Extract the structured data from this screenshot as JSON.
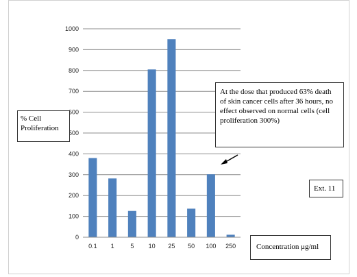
{
  "chart_data": {
    "type": "bar",
    "categories": [
      "0.1",
      "1",
      "5",
      "10",
      "25",
      "50",
      "100",
      "250"
    ],
    "values": [
      380,
      282,
      126,
      805,
      950,
      137,
      302,
      12
    ],
    "ylim": [
      0,
      1000
    ],
    "yticks": [
      "0",
      "100",
      "200",
      "300",
      "400",
      "500",
      "600",
      "700",
      "800",
      "900",
      "1000"
    ],
    "ylabel": "% Cell Proliferation",
    "xlabel": "Concentration μg/ml",
    "annotation": "At the dose that produced 63% death of skin cancer cells after 36 hours, no effect observed on normal cells (cell proliferation 300%)",
    "tag": "Ext. 11",
    "grid": true,
    "bar_color": "#4f81bd"
  }
}
